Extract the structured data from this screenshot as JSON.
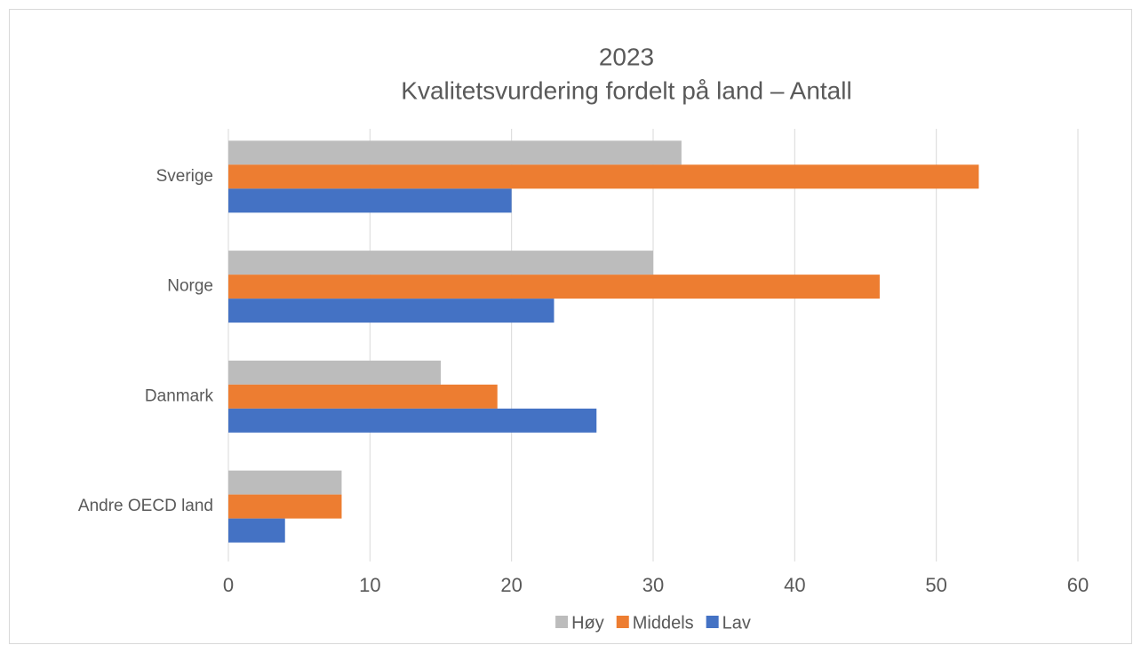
{
  "chart_data": {
    "type": "hbar",
    "title": "2023",
    "subtitle": "Kvalitetsvurdering fordelt på land – Antall",
    "categories": [
      "Sverige",
      "Norge",
      "Danmark",
      "Andre OECD land"
    ],
    "series": [
      {
        "name": "Høy",
        "color": "#bcbcbc",
        "values": [
          32,
          30,
          15,
          8
        ]
      },
      {
        "name": "Middels",
        "color": "#ed7d31",
        "values": [
          53,
          46,
          19,
          8
        ]
      },
      {
        "name": "Lav",
        "color": "#4472c4",
        "values": [
          20,
          23,
          26,
          4
        ]
      }
    ],
    "xlim": [
      0,
      60
    ],
    "xticks": [
      0,
      10,
      20,
      30,
      40,
      50,
      60
    ],
    "grid": true,
    "legend": "bottom"
  }
}
